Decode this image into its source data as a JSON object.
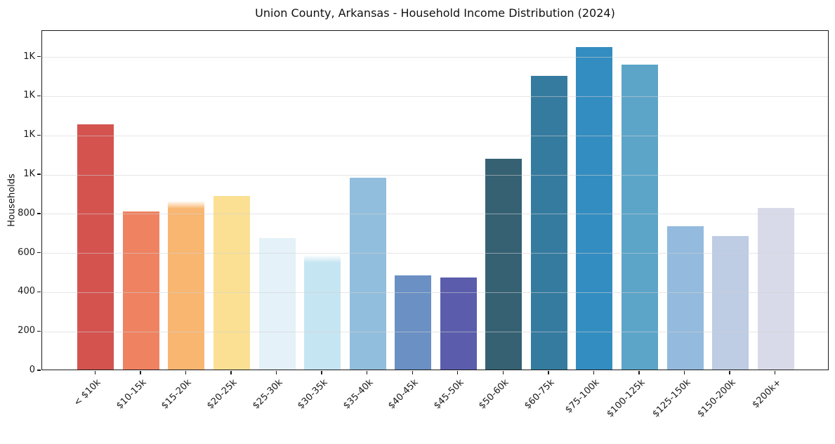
{
  "chart_data": {
    "type": "bar",
    "title": "Union County, Arkansas - Household Income Distribution (2024)",
    "xlabel": "",
    "ylabel": "Households",
    "ylim": [
      0,
      1735
    ],
    "grid": true,
    "legend": false,
    "categories": [
      "< $10k",
      "$10-15k",
      "$15-20k",
      "$20-25k",
      "$25-30k",
      "$30-35k",
      "$35-40k",
      "$40-45k",
      "$45-50k",
      "$50-60k",
      "$60-75k",
      "$75-100k",
      "$100-125k",
      "$125-150k",
      "$150-200k",
      "$200k+"
    ],
    "values": [
      1250,
      805,
      860,
      885,
      670,
      585,
      980,
      480,
      470,
      1075,
      1500,
      1645,
      1555,
      730,
      680,
      825
    ],
    "bar_colors": [
      "#d4534f",
      "#ef8261",
      "#f8b671",
      "#fbe093",
      "#e4f1f8",
      "#c6e5f2",
      "#92bedd",
      "#6a90c4",
      "#5b5dac",
      "#356173",
      "#357b9f",
      "#348dc1",
      "#5ca5c9",
      "#94bbde",
      "#becce4",
      "#d9dae9"
    ],
    "soft_top_indices": [
      2,
      5
    ],
    "yticks": [
      {
        "value": 0,
        "label": "0"
      },
      {
        "value": 200,
        "label": "200"
      },
      {
        "value": 400,
        "label": "400"
      },
      {
        "value": 600,
        "label": "600"
      },
      {
        "value": 800,
        "label": "800"
      },
      {
        "value": 1000,
        "label": "1K"
      },
      {
        "value": 1200,
        "label": "1K"
      },
      {
        "value": 1400,
        "label": "1K"
      },
      {
        "value": 1600,
        "label": "1K"
      }
    ]
  }
}
